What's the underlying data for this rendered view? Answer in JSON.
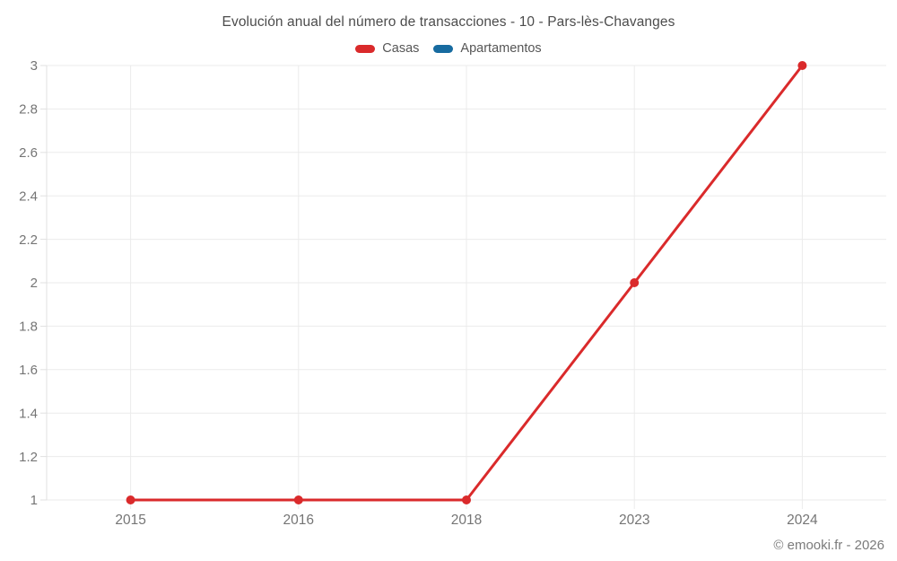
{
  "chart_data": {
    "type": "line",
    "title": "Evolución anual del número de transacciones - 10 - Pars-lès-Chavanges",
    "categories": [
      "2015",
      "2016",
      "2018",
      "2023",
      "2024"
    ],
    "series": [
      {
        "name": "Casas",
        "color": "#da2a2b",
        "values": [
          1,
          1,
          1,
          2,
          3
        ]
      },
      {
        "name": "Apartamentos",
        "color": "#176ba0",
        "values": []
      }
    ],
    "xlabel": "",
    "ylabel": "",
    "ylim": [
      1,
      3
    ],
    "ytick_labels": [
      "1",
      "1.2",
      "1.4",
      "1.6",
      "1.8",
      "2",
      "2.2",
      "2.4",
      "2.6",
      "2.8",
      "3"
    ],
    "grid": true,
    "legend_position": "top",
    "colors": {
      "gridline": "#ebebeb",
      "axis_border": "#e0e0e0",
      "tick_text": "#757575",
      "title_text": "#4c4c4c"
    }
  },
  "footer": {
    "text": "© emooki.fr - 2026"
  }
}
